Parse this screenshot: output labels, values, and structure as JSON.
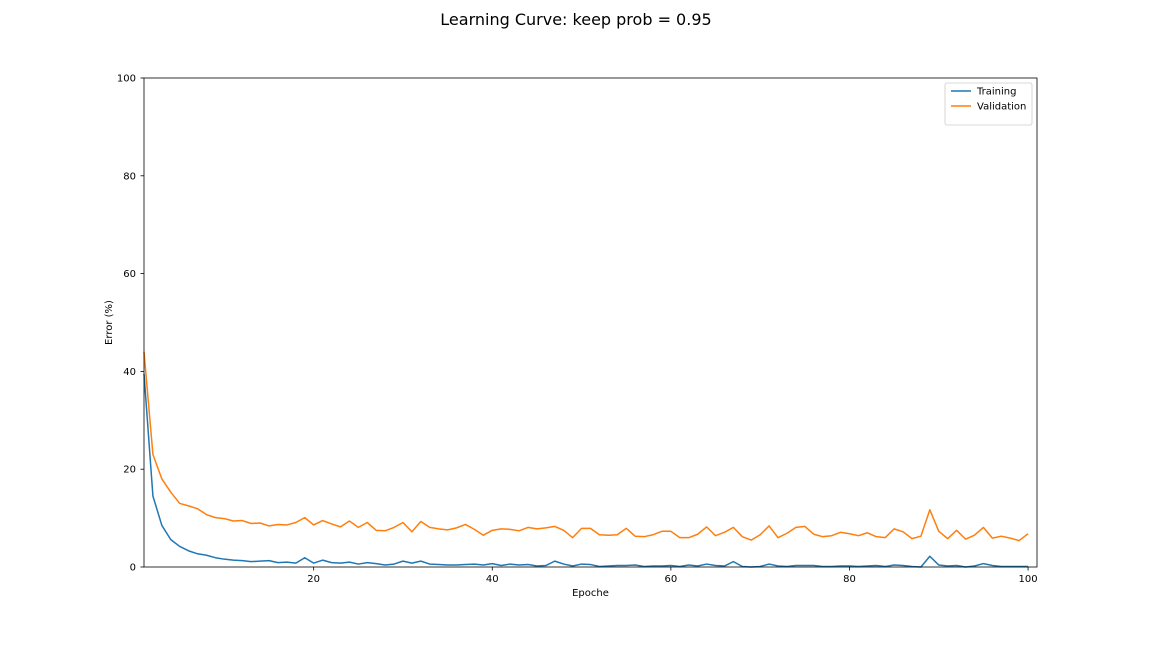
{
  "chart_data": {
    "type": "line",
    "title": "Learning Curve: keep prob = 0.95",
    "xlabel": "Epoche",
    "ylabel": "Error (%)",
    "xlim": [
      1,
      101
    ],
    "ylim": [
      0,
      100
    ],
    "xticks": [
      20,
      40,
      60,
      80,
      100
    ],
    "yticks": [
      0,
      20,
      40,
      60,
      80,
      100
    ],
    "grid": false,
    "legend_position": "top-right",
    "x": [
      1,
      2,
      3,
      4,
      5,
      6,
      7,
      8,
      9,
      10,
      11,
      12,
      13,
      14,
      15,
      16,
      17,
      18,
      19,
      20,
      21,
      22,
      23,
      24,
      25,
      26,
      27,
      28,
      29,
      30,
      31,
      32,
      33,
      34,
      35,
      36,
      37,
      38,
      39,
      40,
      41,
      42,
      43,
      44,
      45,
      46,
      47,
      48,
      49,
      50,
      51,
      52,
      53,
      54,
      55,
      56,
      57,
      58,
      59,
      60,
      61,
      62,
      63,
      64,
      65,
      66,
      67,
      68,
      69,
      70,
      71,
      72,
      73,
      74,
      75,
      76,
      77,
      78,
      79,
      80,
      81,
      82,
      83,
      84,
      85,
      86,
      87,
      88,
      89,
      90,
      91,
      92,
      93,
      94,
      95,
      96,
      97,
      98,
      99,
      100
    ],
    "series": [
      {
        "name": "Training",
        "color": "#1f77b4",
        "values": [
          39.5,
          14.5,
          8.5,
          5.6,
          4.2,
          3.3,
          2.7,
          2.4,
          1.9,
          1.6,
          1.4,
          1.3,
          1.1,
          1.2,
          1.3,
          0.9,
          1.0,
          0.8,
          1.9,
          0.8,
          1.4,
          0.9,
          0.8,
          1.0,
          0.6,
          0.9,
          0.7,
          0.4,
          0.6,
          1.2,
          0.8,
          1.2,
          0.6,
          0.5,
          0.4,
          0.4,
          0.5,
          0.6,
          0.4,
          0.7,
          0.3,
          0.6,
          0.4,
          0.5,
          0.2,
          0.3,
          1.2,
          0.6,
          0.2,
          0.6,
          0.5,
          0.1,
          0.2,
          0.3,
          0.3,
          0.4,
          0.1,
          0.2,
          0.2,
          0.3,
          0.1,
          0.4,
          0.2,
          0.6,
          0.3,
          0.2,
          1.1,
          0.1,
          0.0,
          0.1,
          0.6,
          0.2,
          0.1,
          0.3,
          0.3,
          0.3,
          0.1,
          0.1,
          0.2,
          0.2,
          0.1,
          0.2,
          0.3,
          0.1,
          0.4,
          0.3,
          0.1,
          0.0,
          2.2,
          0.4,
          0.2,
          0.3,
          0.0,
          0.2,
          0.7,
          0.3,
          0.1,
          0.1,
          0.1,
          0.1
        ]
      },
      {
        "name": "Validation",
        "color": "#ff7f0e",
        "values": [
          44.0,
          23.0,
          18.0,
          15.3,
          13.0,
          12.5,
          11.9,
          10.7,
          10.1,
          9.9,
          9.4,
          9.5,
          8.9,
          9.0,
          8.4,
          8.7,
          8.6,
          9.1,
          10.1,
          8.6,
          9.5,
          8.8,
          8.2,
          9.4,
          8.1,
          9.1,
          7.5,
          7.4,
          8.1,
          9.1,
          7.2,
          9.3,
          8.1,
          7.8,
          7.6,
          8.0,
          8.7,
          7.7,
          6.5,
          7.5,
          7.8,
          7.7,
          7.4,
          8.1,
          7.8,
          8.0,
          8.3,
          7.5,
          6.0,
          7.9,
          7.9,
          6.6,
          6.5,
          6.6,
          7.9,
          6.3,
          6.2,
          6.6,
          7.3,
          7.3,
          6.0,
          6.0,
          6.7,
          8.2,
          6.4,
          7.1,
          8.1,
          6.2,
          5.5,
          6.6,
          8.4,
          6.0,
          6.9,
          8.1,
          8.3,
          6.7,
          6.2,
          6.4,
          7.1,
          6.8,
          6.4,
          7.0,
          6.2,
          6.0,
          7.8,
          7.2,
          5.8,
          6.3,
          11.7,
          7.3,
          5.8,
          7.5,
          5.7,
          6.5,
          8.1,
          5.9,
          6.3,
          5.9,
          5.4,
          6.8
        ]
      }
    ]
  }
}
